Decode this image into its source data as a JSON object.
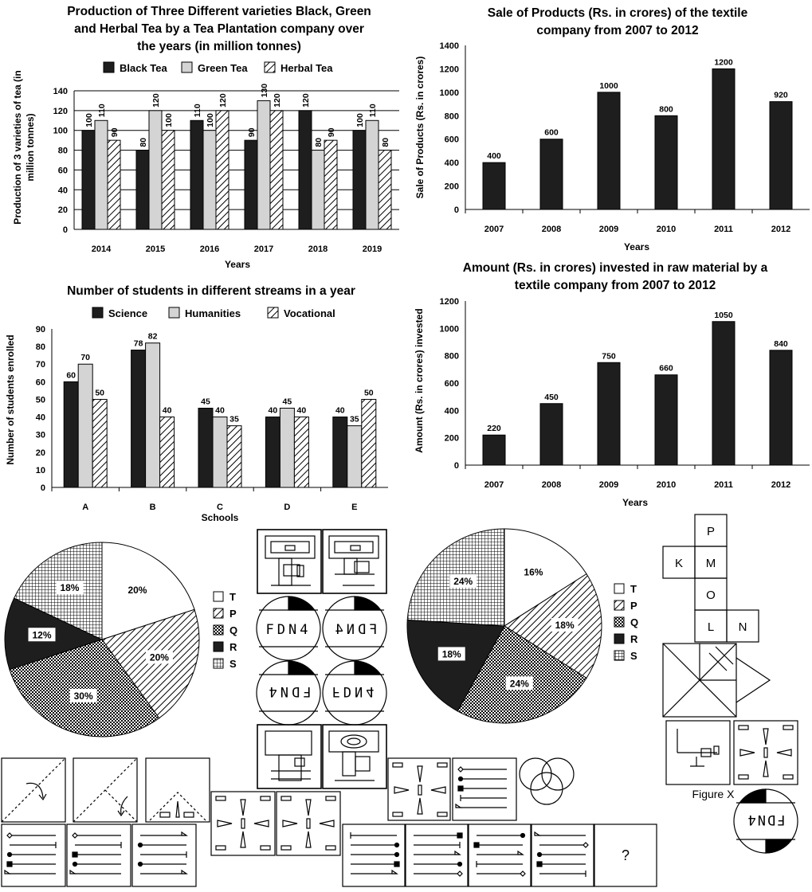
{
  "chart_data": [
    {
      "type": "bar",
      "title_lines": [
        "Production of Three Different varieties Black, Green",
        "and Herbal Tea by a Tea Plantation company over",
        "the years (in million tonnes)"
      ],
      "categories": [
        "2014",
        "2015",
        "2016",
        "2017",
        "2018",
        "2019"
      ],
      "series": [
        {
          "name": "Black Tea",
          "values": [
            100,
            80,
            110,
            90,
            120,
            100
          ]
        },
        {
          "name": "Green Tea",
          "values": [
            110,
            120,
            100,
            130,
            80,
            110
          ]
        },
        {
          "name": "Herbal Tea",
          "values": [
            90,
            100,
            120,
            120,
            90,
            80
          ]
        }
      ],
      "xlabel": "Years",
      "ylabel_lines": [
        "Production of 3 varieties of tea (in",
        "million tonnes)"
      ],
      "ylim": [
        0,
        140
      ],
      "yticks": [
        "0",
        "20",
        "40",
        "60",
        "80",
        "100",
        "120",
        "140"
      ],
      "grid": true,
      "legend": "top"
    },
    {
      "type": "bar",
      "title_lines": [
        "Sale of Products (Rs. in crores) of the textile",
        "company from 2007 to 2012"
      ],
      "categories": [
        "2007",
        "2008",
        "2009",
        "2010",
        "2011",
        "2012"
      ],
      "series": [
        {
          "values": [
            400,
            600,
            1000,
            800,
            1200,
            920
          ]
        }
      ],
      "xlabel": "Years",
      "ylabel": "Sale of Products (Rs. in crores)",
      "ylim": [
        0,
        1400
      ],
      "yticks": [
        "0",
        "200",
        "400",
        "600",
        "800",
        "1000",
        "1200",
        "1400"
      ],
      "grid": false
    },
    {
      "type": "bar",
      "title_lines": [
        "Number of students in different streams in a year"
      ],
      "categories": [
        "A",
        "B",
        "C",
        "D",
        "E"
      ],
      "series": [
        {
          "name": "Science",
          "values": [
            60,
            78,
            45,
            40,
            40
          ]
        },
        {
          "name": "Humanities",
          "values": [
            70,
            82,
            40,
            45,
            35
          ]
        },
        {
          "name": "Vocational",
          "values": [
            50,
            40,
            35,
            40,
            50
          ]
        }
      ],
      "xlabel": "Schools",
      "ylabel": "Number of students enrolled",
      "ylim": [
        0,
        90
      ],
      "yticks": [
        "0",
        "10",
        "20",
        "30",
        "40",
        "50",
        "60",
        "70",
        "80",
        "90"
      ],
      "grid": false,
      "legend": "top"
    },
    {
      "type": "bar",
      "title_lines": [
        "Amount (Rs. in crores) invested in raw material by a",
        "textile company from 2007 to 2012"
      ],
      "categories": [
        "2007",
        "2008",
        "2009",
        "2010",
        "2011",
        "2012"
      ],
      "series": [
        {
          "values": [
            220,
            450,
            750,
            660,
            1050,
            840
          ]
        }
      ],
      "xlabel": "Years",
      "ylabel": "Amount (Rs. in crores) invested",
      "ylim": [
        0,
        1200
      ],
      "yticks": [
        "0",
        "200",
        "400",
        "600",
        "800",
        "1000",
        "1200"
      ],
      "grid": false
    },
    {
      "type": "pie",
      "categories": [
        "T",
        "P",
        "Q",
        "R",
        "S"
      ],
      "values": [
        20,
        20,
        30,
        12,
        18
      ],
      "labels": [
        "20%",
        "20%",
        "30%",
        "12%",
        "18%"
      ],
      "legend": "right"
    },
    {
      "type": "pie",
      "categories": [
        "T",
        "P",
        "Q",
        "R",
        "S"
      ],
      "values": [
        16,
        18,
        24,
        18,
        24
      ],
      "labels": [
        "16%",
        "18%",
        "24%",
        "18%",
        "24%"
      ],
      "legend": "right"
    }
  ],
  "puzzles": {
    "mirror_text_a": "FDN4",
    "mirror_text_b": "FDN4",
    "cube_faces": [
      "P",
      "K",
      "M",
      "O",
      "L",
      "N"
    ],
    "figure_x_caption": "Figure X",
    "question_mark": "?"
  },
  "colors": {
    "black_series": "#1e1e1e",
    "grey_series": "#d4d4d4",
    "hatch": "#000000",
    "background": "#ffffff"
  }
}
